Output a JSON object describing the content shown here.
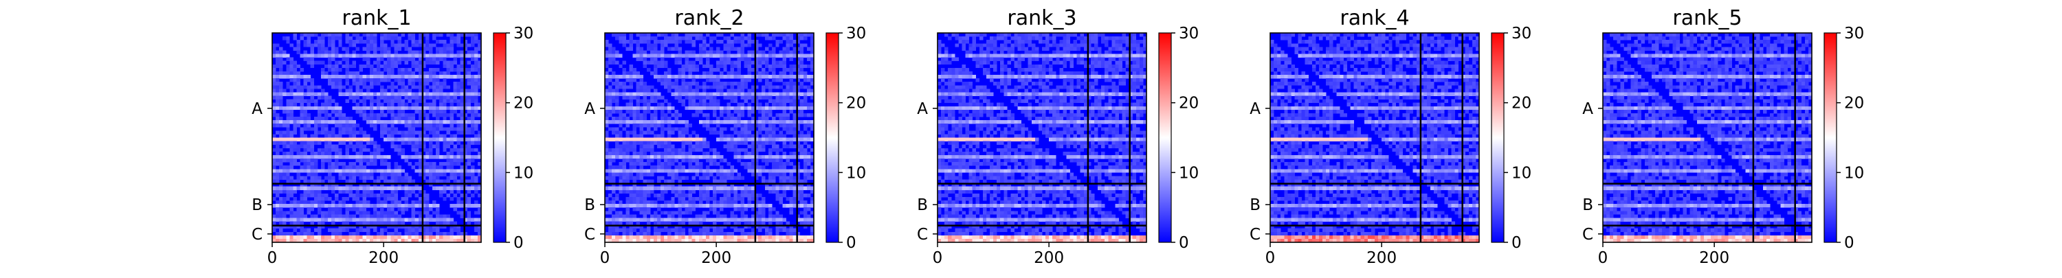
{
  "chart_data": [
    {
      "type": "heatmap",
      "title": "rank_1",
      "x_ticks": [
        0,
        200
      ],
      "chain_labels": [
        "A",
        "B",
        "C"
      ],
      "chain_boundaries": [
        270,
        345,
        375
      ],
      "x_range": [
        0,
        375
      ],
      "colorbar": {
        "range": [
          0,
          30
        ],
        "ticks": [
          0,
          10,
          20,
          30
        ]
      },
      "c_row_level": 22
    },
    {
      "type": "heatmap",
      "title": "rank_2",
      "x_ticks": [
        0,
        200
      ],
      "chain_labels": [
        "A",
        "B",
        "C"
      ],
      "chain_boundaries": [
        270,
        345,
        375
      ],
      "x_range": [
        0,
        375
      ],
      "colorbar": {
        "range": [
          0,
          30
        ],
        "ticks": [
          0,
          10,
          20,
          30
        ]
      },
      "c_row_level": 22
    },
    {
      "type": "heatmap",
      "title": "rank_3",
      "x_ticks": [
        0,
        200
      ],
      "chain_labels": [
        "A",
        "B",
        "C"
      ],
      "chain_boundaries": [
        270,
        345,
        375
      ],
      "x_range": [
        0,
        375
      ],
      "colorbar": {
        "range": [
          0,
          30
        ],
        "ticks": [
          0,
          10,
          20,
          30
        ]
      },
      "c_row_level": 22
    },
    {
      "type": "heatmap",
      "title": "rank_4",
      "x_ticks": [
        0,
        200
      ],
      "chain_labels": [
        "A",
        "B",
        "C"
      ],
      "chain_boundaries": [
        270,
        345,
        375
      ],
      "x_range": [
        0,
        375
      ],
      "colorbar": {
        "range": [
          0,
          30
        ],
        "ticks": [
          0,
          10,
          20,
          30
        ]
      },
      "c_row_level": 26
    },
    {
      "type": "heatmap",
      "title": "rank_5",
      "x_ticks": [
        0,
        200
      ],
      "chain_labels": [
        "A",
        "B",
        "C"
      ],
      "chain_boundaries": [
        270,
        345,
        375
      ],
      "x_range": [
        0,
        375
      ],
      "colorbar": {
        "range": [
          0,
          30
        ],
        "ticks": [
          0,
          10,
          20,
          30
        ]
      },
      "c_row_level": 22
    }
  ],
  "colors": {
    "low": "#0000ff",
    "mid": "#ffffff",
    "high": "#ff0000",
    "divider": "#000000"
  }
}
